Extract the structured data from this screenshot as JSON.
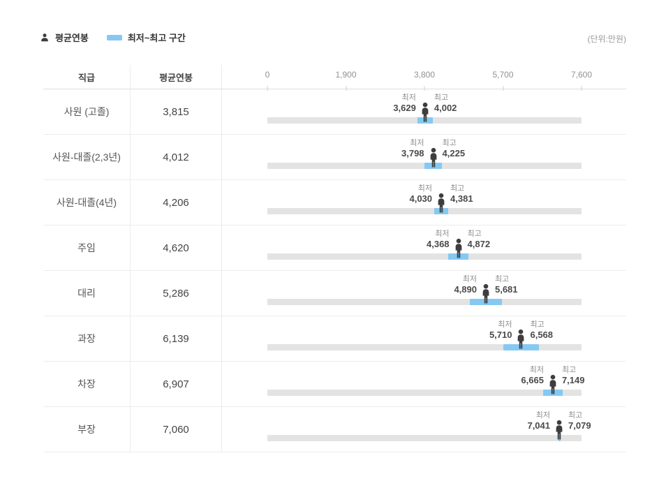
{
  "legend": {
    "avg_label": "평균연봉",
    "range_label": "최저~최고 구간"
  },
  "unit_label": "(단위:만원)",
  "table_header": {
    "position_col": "직급",
    "avg_col": "평균연봉"
  },
  "colors": {
    "accent_blue": "#85C9F3",
    "track_gray": "#E3E3E3",
    "icon_dark": "#3D3D3D"
  },
  "chart_data": {
    "type": "bar",
    "subtype": "horizontal-range-bar-with-average-marker",
    "unit": "만원",
    "xlim": [
      0,
      7600
    ],
    "axis_ticks": [
      0,
      1900,
      3800,
      5700,
      7600
    ],
    "axis_tick_labels": [
      "0",
      "1,900",
      "3,800",
      "5,700",
      "7,600"
    ],
    "min_label": "최저",
    "max_label": "최고",
    "categories": [
      "사원 (고졸)",
      "사원-대졸(2,3년)",
      "사원-대졸(4년)",
      "주임",
      "대리",
      "과장",
      "차장",
      "부장"
    ],
    "rows": [
      {
        "position": "사원 (고졸)",
        "avg": 3815,
        "min": 3629,
        "max": 4002,
        "avg_text": "3,815",
        "min_text": "3,629",
        "max_text": "4,002"
      },
      {
        "position": "사원-대졸(2,3년)",
        "avg": 4012,
        "min": 3798,
        "max": 4225,
        "avg_text": "4,012",
        "min_text": "3,798",
        "max_text": "4,225"
      },
      {
        "position": "사원-대졸(4년)",
        "avg": 4206,
        "min": 4030,
        "max": 4381,
        "avg_text": "4,206",
        "min_text": "4,030",
        "max_text": "4,381"
      },
      {
        "position": "주임",
        "avg": 4620,
        "min": 4368,
        "max": 4872,
        "avg_text": "4,620",
        "min_text": "4,368",
        "max_text": "4,872"
      },
      {
        "position": "대리",
        "avg": 5286,
        "min": 4890,
        "max": 5681,
        "avg_text": "5,286",
        "min_text": "4,890",
        "max_text": "5,681"
      },
      {
        "position": "과장",
        "avg": 6139,
        "min": 5710,
        "max": 6568,
        "avg_text": "6,139",
        "min_text": "5,710",
        "max_text": "6,568"
      },
      {
        "position": "차장",
        "avg": 6907,
        "min": 6665,
        "max": 7149,
        "avg_text": "6,907",
        "min_text": "6,665",
        "max_text": "7,149"
      },
      {
        "position": "부장",
        "avg": 7060,
        "min": 7041,
        "max": 7079,
        "avg_text": "7,060",
        "min_text": "7,041",
        "max_text": "7,079"
      }
    ]
  }
}
